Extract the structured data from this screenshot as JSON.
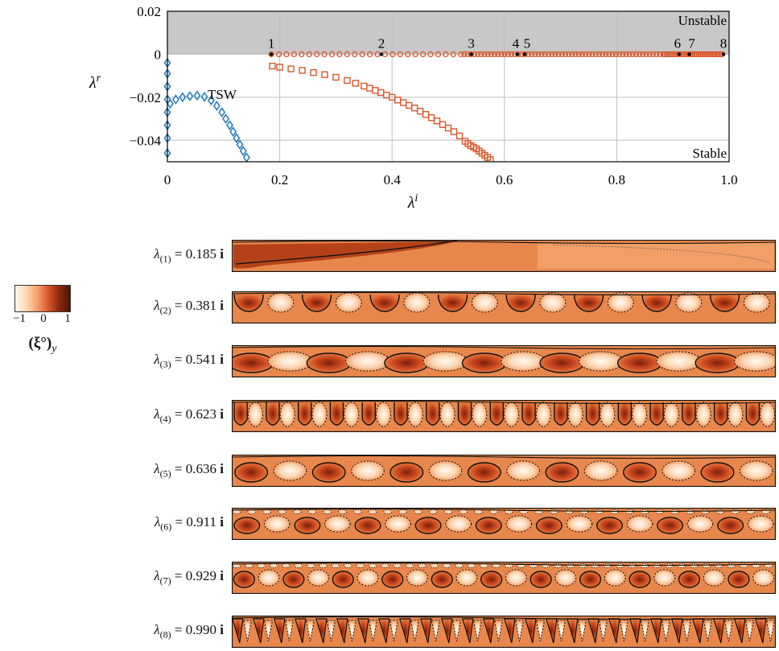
{
  "chart_data": {
    "type": "scatter",
    "xlabel": "λ",
    "xlabel_sup": "i",
    "ylabel": "λ",
    "ylabel_sup": "r",
    "xlim": [
      0,
      1.0
    ],
    "ylim": [
      -0.05,
      0.02
    ],
    "xticks": [
      "0",
      "0.2",
      "0.4",
      "0.6",
      "0.8",
      "1.0"
    ],
    "yticks": [
      "0.02",
      "0",
      "−0.02",
      "−0.04"
    ],
    "grid": true,
    "unstable_label": "Unstable",
    "stable_label": "Stable",
    "tsw_label": "TSW",
    "mode_markers": [
      {
        "label": "1",
        "x": 0.185
      },
      {
        "label": "2",
        "x": 0.381
      },
      {
        "label": "3",
        "x": 0.541
      },
      {
        "label": "4",
        "x": 0.623
      },
      {
        "label": "5",
        "x": 0.636
      },
      {
        "label": "6",
        "x": 0.911
      },
      {
        "label": "7",
        "x": 0.929
      },
      {
        "label": "8",
        "x": 0.99
      }
    ],
    "series": [
      {
        "marker": "diamond",
        "color": "#2a7fb8",
        "points": [
          [
            0,
            -0.004
          ],
          [
            0,
            -0.009
          ],
          [
            0,
            -0.015
          ],
          [
            0,
            -0.021
          ],
          [
            0,
            -0.027
          ],
          [
            0,
            -0.033
          ],
          [
            0,
            -0.039
          ],
          [
            0,
            -0.046
          ],
          [
            0.005,
            -0.023
          ],
          [
            0.015,
            -0.021
          ],
          [
            0.027,
            -0.02
          ],
          [
            0.04,
            -0.0195
          ],
          [
            0.053,
            -0.0192
          ],
          [
            0.066,
            -0.0198
          ],
          [
            0.078,
            -0.0215
          ],
          [
            0.088,
            -0.024
          ],
          [
            0.097,
            -0.027
          ],
          [
            0.104,
            -0.03
          ],
          [
            0.111,
            -0.033
          ],
          [
            0.117,
            -0.036
          ],
          [
            0.123,
            -0.039
          ],
          [
            0.129,
            -0.042
          ],
          [
            0.135,
            -0.045
          ],
          [
            0.141,
            -0.048
          ]
        ]
      },
      {
        "marker": "circle",
        "color": "#d8572a",
        "row_y": 0,
        "x_start": 0.185,
        "x_end": 0.99
      },
      {
        "marker": "square",
        "color": "#d8572a",
        "points": [
          [
            0.187,
            -0.0055
          ],
          [
            0.2,
            -0.006
          ],
          [
            0.22,
            -0.0068
          ],
          [
            0.24,
            -0.0075
          ],
          [
            0.26,
            -0.0085
          ],
          [
            0.28,
            -0.0095
          ],
          [
            0.3,
            -0.0107
          ],
          [
            0.32,
            -0.0122
          ],
          [
            0.335,
            -0.0135
          ],
          [
            0.35,
            -0.0148
          ],
          [
            0.36,
            -0.0158
          ],
          [
            0.37,
            -0.0168
          ],
          [
            0.38,
            -0.0178
          ],
          [
            0.39,
            -0.019
          ],
          [
            0.4,
            -0.02
          ],
          [
            0.41,
            -0.0213
          ],
          [
            0.42,
            -0.0225
          ],
          [
            0.43,
            -0.0238
          ],
          [
            0.44,
            -0.025
          ],
          [
            0.45,
            -0.0265
          ],
          [
            0.46,
            -0.028
          ],
          [
            0.47,
            -0.0295
          ],
          [
            0.48,
            -0.031
          ],
          [
            0.49,
            -0.0327
          ],
          [
            0.5,
            -0.0343
          ],
          [
            0.51,
            -0.036
          ],
          [
            0.52,
            -0.038
          ],
          [
            0.53,
            -0.0405
          ],
          [
            0.535,
            -0.0415
          ],
          [
            0.54,
            -0.0425
          ],
          [
            0.545,
            -0.0432
          ],
          [
            0.55,
            -0.044
          ],
          [
            0.555,
            -0.045
          ],
          [
            0.56,
            -0.046
          ],
          [
            0.565,
            -0.047
          ],
          [
            0.57,
            -0.048
          ],
          [
            0.575,
            -0.049
          ]
        ]
      }
    ]
  },
  "colorbar": {
    "ticks": [
      "−1",
      "0",
      "1"
    ],
    "title_symbol": "(ξ°)",
    "title_sub": "y"
  },
  "modes": [
    {
      "index": "(1)",
      "value": "0.185",
      "unit": "i",
      "pattern": "large"
    },
    {
      "index": "(2)",
      "value": "0.381",
      "unit": "i",
      "pattern": "cups",
      "n": 8
    },
    {
      "index": "(3)",
      "value": "0.541",
      "unit": "i",
      "pattern": "cells",
      "n": 14
    },
    {
      "index": "(4)",
      "value": "0.623",
      "unit": "i",
      "pattern": "fingers",
      "n": 17
    },
    {
      "index": "(5)",
      "value": "0.636",
      "unit": "i",
      "pattern": "cells",
      "n": 14
    },
    {
      "index": "(6)",
      "value": "0.911",
      "unit": "i",
      "pattern": "cells2",
      "n": 18
    },
    {
      "index": "(7)",
      "value": "0.929",
      "unit": "i",
      "pattern": "cells2",
      "n": 22
    },
    {
      "index": "(8)",
      "value": "0.990",
      "unit": "i",
      "pattern": "wedges",
      "n": 26
    }
  ]
}
